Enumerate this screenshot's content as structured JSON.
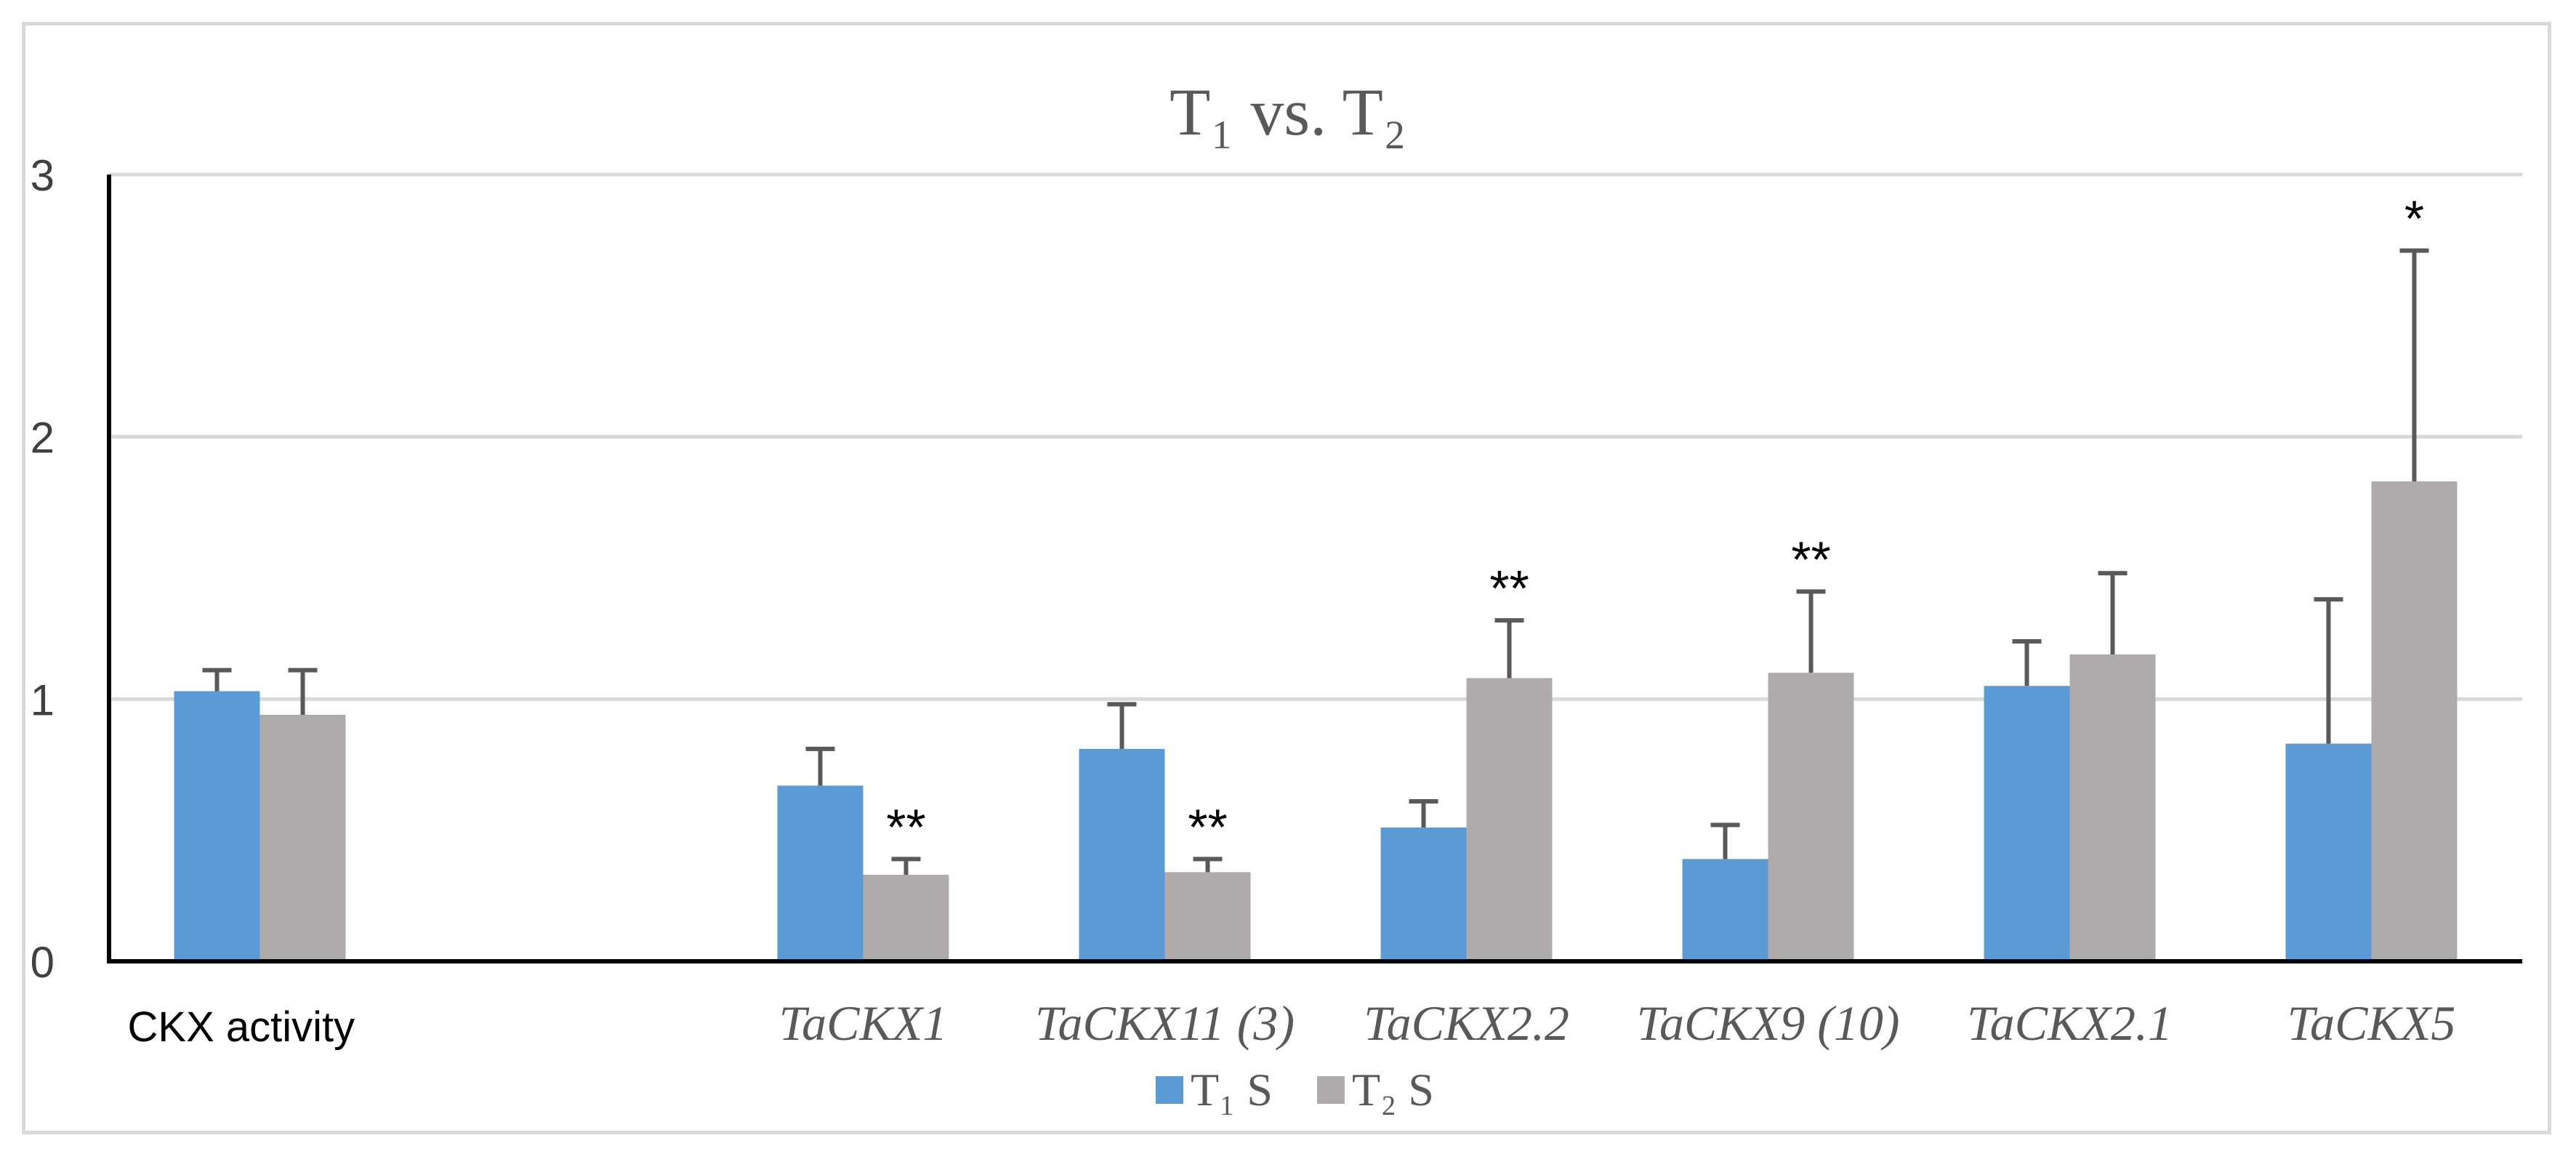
{
  "chart_data": {
    "type": "bar",
    "title": "T₁ vs. T₂",
    "xlabel": "",
    "ylabel": "",
    "ylim": [
      0,
      3
    ],
    "yticks": [
      "0",
      "1",
      "2",
      "3"
    ],
    "grid": true,
    "legend_position": "bottom-center",
    "categories": [
      "CKX activity",
      "",
      "TaCKX1",
      "TaCKX11 (3)",
      "TaCKX2.2",
      "TaCKX9 (10)",
      "TaCKX2.1",
      "TaCKX5"
    ],
    "category_italic": [
      false,
      false,
      true,
      true,
      true,
      true,
      true,
      true
    ],
    "series": [
      {
        "name": "T₁ S",
        "color": "#5b9bd5",
        "values": [
          1.03,
          null,
          0.67,
          0.81,
          0.51,
          0.39,
          1.05,
          0.83
        ],
        "errors": [
          0.08,
          null,
          0.14,
          0.17,
          0.1,
          0.13,
          0.17,
          0.55
        ]
      },
      {
        "name": "T₂ S",
        "color": "#afabab",
        "values": [
          0.94,
          null,
          0.33,
          0.34,
          1.08,
          1.1,
          1.17,
          1.83
        ],
        "errors": [
          0.17,
          null,
          0.06,
          0.05,
          0.22,
          0.31,
          0.31,
          0.88
        ]
      }
    ],
    "annotations": [
      {
        "category": "TaCKX1",
        "series": "T₂ S",
        "text": "**"
      },
      {
        "category": "TaCKX11 (3)",
        "series": "T₂ S",
        "text": "**"
      },
      {
        "category": "TaCKX2.2",
        "series": "T₂ S",
        "text": "**"
      },
      {
        "category": "TaCKX9 (10)",
        "series": "T₂ S",
        "text": "**"
      },
      {
        "category": "TaCKX5",
        "series": "T₂ S",
        "text": "*"
      }
    ]
  }
}
